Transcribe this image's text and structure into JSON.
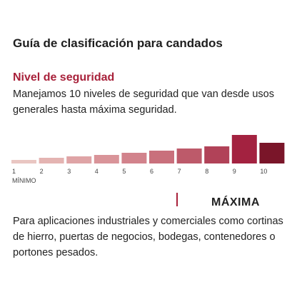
{
  "header": {
    "title": "Guía de clasificación para candados"
  },
  "section": {
    "heading": "Nivel de seguridad",
    "description": [
      "Manejamos 10 niveles de seguridad que van desde usos",
      "generales hasta máxima seguridad."
    ]
  },
  "scale": {
    "levels": [
      1,
      2,
      3,
      4,
      5,
      6,
      7,
      8,
      9,
      10
    ],
    "min_label": "MÍNIMO"
  },
  "maximum": {
    "label": "MÁXIMA",
    "description": [
      "Para aplicaciones industriales y comerciales como cortinas",
      "de hierro, puertas de negocios, bodegas, contenedores o",
      "portones pesados."
    ]
  }
}
